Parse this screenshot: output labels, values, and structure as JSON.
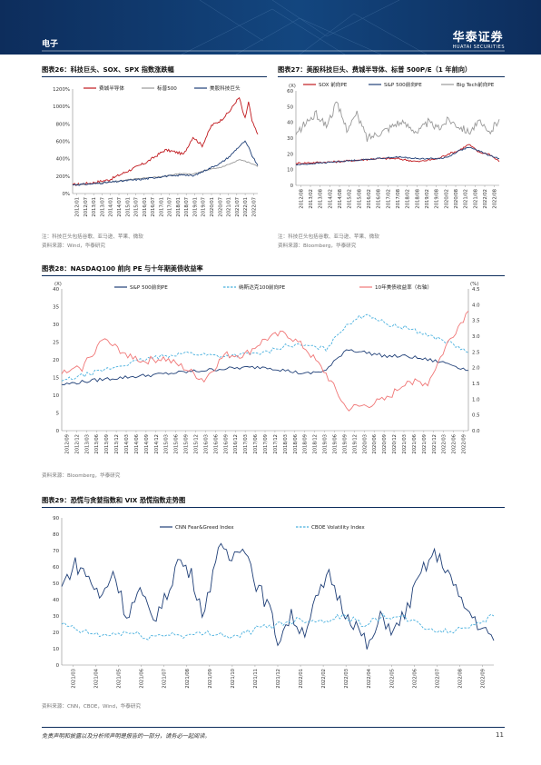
{
  "header": {
    "section": "电子",
    "logo_cn": "华泰证券",
    "logo_en": "HUATAI SECURITIES"
  },
  "colors": {
    "navy": "#0d2d5c",
    "red": "#c0191e",
    "gray": "#9a9a9a",
    "blue_dark": "#1f3f77",
    "cyan": "#49b0de",
    "salmon": "#f07676"
  },
  "footer": {
    "disclaimer": "免责声明和披露以及分析师声明是报告的一部分，请务必一起阅读。",
    "page": "11"
  },
  "charts": [
    {
      "id": "fig26",
      "title": "图表26：科技巨头、SOX、SPX 指数涨跌幅",
      "note": "注：科技巨头包括谷歌、亚马逊、苹果、微软",
      "source": "资料来源：Wind，华泰研究",
      "chart_data": {
        "type": "line",
        "yticks": [
          "1200%",
          "1000%",
          "800%",
          "600%",
          "400%",
          "200%",
          "0%"
        ],
        "ylim": [
          0,
          12
        ],
        "xticks": [
          "2012/01",
          "2012/07",
          "2013/01",
          "2013/07",
          "2014/01",
          "2014/07",
          "2015/01",
          "2015/07",
          "2016/01",
          "2016/07",
          "2017/01",
          "2017/07",
          "2018/01",
          "2018/07",
          "2019/01",
          "2019/07",
          "2020/01",
          "2020/07",
          "2021/01",
          "2021/07",
          "2022/01",
          "2022/07"
        ],
        "legend": [
          "费城半导体",
          "标普500",
          "美股科技巨头"
        ],
        "series": [
          {
            "name": "费城半导体",
            "color": "#c0191e",
            "x": [
              0,
              0.1,
              0.2,
              0.3,
              0.4,
              0.5,
              0.55,
              0.6,
              0.65,
              0.7,
              0.75,
              0.8,
              0.85,
              0.88,
              0.9,
              0.93,
              0.95,
              0.97,
              1.0
            ],
            "y": [
              1,
              1.2,
              1.6,
              2.6,
              3.6,
              5,
              4.8,
              4.5,
              6.5,
              5.5,
              7.8,
              8.4,
              9.5,
              10.5,
              11,
              8.5,
              10.5,
              8.2,
              6.8
            ]
          },
          {
            "name": "标普500",
            "color": "#9a9a9a",
            "x": [
              0,
              0.1,
              0.2,
              0.3,
              0.4,
              0.5,
              0.55,
              0.6,
              0.65,
              0.7,
              0.75,
              0.8,
              0.85,
              0.9,
              0.95,
              1.0
            ],
            "y": [
              1,
              1.1,
              1.3,
              1.6,
              1.8,
              2.0,
              2.2,
              2.3,
              2.2,
              2.6,
              2.8,
              3.0,
              3.4,
              3.9,
              3.6,
              3.1
            ]
          },
          {
            "name": "美股科技巨头",
            "color": "#1f3f77",
            "x": [
              0,
              0.1,
              0.2,
              0.3,
              0.4,
              0.5,
              0.55,
              0.6,
              0.65,
              0.7,
              0.75,
              0.8,
              0.85,
              0.88,
              0.9,
              0.93,
              0.95,
              0.97,
              1.0
            ],
            "y": [
              1,
              1.1,
              1.3,
              1.5,
              1.7,
              2.0,
              2.0,
              2.2,
              2.0,
              2.5,
              3.0,
              3.5,
              4.3,
              5.0,
              5.4,
              6.0,
              5.3,
              4.3,
              3.2
            ]
          }
        ]
      }
    },
    {
      "id": "fig27",
      "title": "图表27：美股科技巨头、费城半导体、标普 500P/E（1 年前向）",
      "note": "注：科技巨头包括谷歌、亚马逊、苹果、微软",
      "source": "资料来源：Bloomberg，华泰研究",
      "chart_data": {
        "type": "line",
        "yunit": "(X)",
        "yticks": [
          "60",
          "50",
          "40",
          "30",
          "20",
          "10",
          "0"
        ],
        "ylim": [
          0,
          60
        ],
        "xticks": [
          "2012/08",
          "2013/02",
          "2013/08",
          "2014/02",
          "2014/08",
          "2015/02",
          "2015/08",
          "2016/02",
          "2016/08",
          "2017/02",
          "2017/08",
          "2018/02",
          "2018/08",
          "2019/02",
          "2019/08",
          "2020/02",
          "2020/08",
          "2021/02",
          "2021/08",
          "2022/02",
          "2022/08"
        ],
        "legend": [
          "SOX 前向PE",
          "S&P 500前向PE",
          "Big Tech前向PE"
        ],
        "series": [
          {
            "name": "SOX 前向PE",
            "color": "#c0191e",
            "x": [
              0,
              0.1,
              0.2,
              0.3,
              0.4,
              0.5,
              0.6,
              0.7,
              0.75,
              0.8,
              0.85,
              0.9,
              0.95,
              1.0
            ],
            "y": [
              14,
              14.5,
              15,
              16,
              17,
              17,
              15,
              17,
              20,
              22,
              26,
              21,
              20,
              15
            ]
          },
          {
            "name": "S&P 500前向PE",
            "color": "#1f3f77",
            "x": [
              0,
              0.1,
              0.2,
              0.3,
              0.4,
              0.5,
              0.6,
              0.7,
              0.75,
              0.8,
              0.85,
              0.9,
              0.95,
              1.0
            ],
            "y": [
              13,
              14,
              15,
              16,
              17,
              18,
              17,
              17,
              18,
              22,
              24,
              22,
              19,
              17
            ]
          },
          {
            "name": "Big Tech前向PE",
            "color": "#9a9a9a",
            "x": [
              0,
              0.05,
              0.1,
              0.15,
              0.2,
              0.25,
              0.3,
              0.35,
              0.4,
              0.45,
              0.5,
              0.55,
              0.6,
              0.65,
              0.7,
              0.75,
              0.8,
              0.85,
              0.9,
              0.95,
              1.0
            ],
            "y": [
              32,
              40,
              45,
              38,
              52,
              36,
              45,
              30,
              33,
              36,
              40,
              38,
              34,
              40,
              36,
              42,
              38,
              34,
              40,
              33,
              42
            ]
          }
        ]
      }
    },
    {
      "id": "fig28",
      "title": "图表28：NASDAQ100 前向 PE 与十年期美债收益率",
      "source": "资料来源：Bloomberg，华泰研究",
      "chart_data": {
        "type": "line",
        "yunit": "(X)",
        "yunit_right": "(%)",
        "yticks": [
          "40",
          "35",
          "30",
          "25",
          "20",
          "15",
          "10",
          "5",
          "0"
        ],
        "ylim": [
          0,
          40
        ],
        "yticks_right": [
          "4.5",
          "4.0",
          "3.5",
          "3.0",
          "2.5",
          "2.0",
          "1.5",
          "1.0",
          "0.5",
          "0.0"
        ],
        "ylim_right": [
          0,
          4.5
        ],
        "xticks": [
          "2012/09",
          "2012/12",
          "2013/03",
          "2013/06",
          "2013/09",
          "2013/12",
          "2014/03",
          "2014/06",
          "2014/09",
          "2014/12",
          "2015/03",
          "2015/06",
          "2015/09",
          "2015/12",
          "2016/03",
          "2016/06",
          "2016/09",
          "2016/12",
          "2017/03",
          "2017/06",
          "2017/09",
          "2017/12",
          "2018/03",
          "2018/06",
          "2018/09",
          "2018/12",
          "2019/03",
          "2019/06",
          "2019/09",
          "2019/12",
          "2020/03",
          "2020/06",
          "2020/09",
          "2020/12",
          "2021/03",
          "2021/06",
          "2021/09",
          "2021/12",
          "2022/03",
          "2022/06",
          "2022/09"
        ],
        "legend": [
          "S&P 500前向PE",
          "纳斯达克100前向PE",
          "10年美债收益率（右轴）"
        ],
        "series": [
          {
            "name": "S&P 500前向PE",
            "color": "#1f3f77",
            "x": [
              0,
              0.1,
              0.2,
              0.3,
              0.4,
              0.5,
              0.55,
              0.6,
              0.65,
              0.7,
              0.75,
              0.8,
              0.85,
              0.9,
              0.95,
              1.0
            ],
            "y": [
              13,
              14.5,
              15.5,
              16.5,
              17.5,
              18,
              17,
              16,
              17,
              23,
              22,
              21,
              21,
              20,
              19,
              17
            ]
          },
          {
            "name": "纳斯达克100前向PE",
            "color": "#49b0de",
            "x": [
              0,
              0.1,
              0.2,
              0.3,
              0.4,
              0.5,
              0.55,
              0.6,
              0.65,
              0.7,
              0.75,
              0.8,
              0.85,
              0.9,
              0.95,
              1.0
            ],
            "y": [
              14,
              17,
              20,
              22,
              21,
              22,
              24,
              24,
              23,
              30,
              33,
              30,
              29,
              27,
              25,
              22
            ]
          },
          {
            "name": "10年美债收益率（右轴）",
            "color": "#f07676",
            "axis": "right",
            "x": [
              0,
              0.05,
              0.1,
              0.15,
              0.2,
              0.25,
              0.3,
              0.35,
              0.4,
              0.45,
              0.5,
              0.55,
              0.6,
              0.65,
              0.7,
              0.75,
              0.8,
              0.85,
              0.9,
              0.95,
              1.0
            ],
            "y": [
              1.8,
              2.0,
              2.9,
              2.5,
              2.2,
              2.3,
              2.0,
              1.6,
              2.4,
              2.4,
              2.9,
              3.1,
              2.6,
              1.8,
              0.7,
              0.8,
              1.0,
              1.6,
              1.5,
              2.8,
              3.8
            ]
          }
        ]
      }
    },
    {
      "id": "fig29",
      "title": "图表29：恐慌与贪婪指数和 VIX 恐慌指数走势图",
      "source": "资料来源：CNN，CBOE，Wind，华泰研究",
      "chart_data": {
        "type": "line",
        "yticks": [
          "90",
          "80",
          "70",
          "60",
          "50",
          "40",
          "30",
          "20",
          "10",
          "0"
        ],
        "ylim": [
          0,
          90
        ],
        "xticks": [
          "2021/03",
          "2021/04",
          "2021/05",
          "2021/06",
          "2021/07",
          "2021/08",
          "2021/09",
          "2021/10",
          "2021/11",
          "2021/12",
          "2022/01",
          "2022/02",
          "2022/03",
          "2022/04",
          "2022/05",
          "2022/06",
          "2022/07",
          "2022/08",
          "2022/09"
        ],
        "legend": [
          "CNN Fear&Greed Index",
          "CBOE Volatility Index"
        ],
        "series": [
          {
            "name": "CNN Fear&Greed Index",
            "color": "#1f3f77",
            "x": [
              0,
              0.03,
              0.06,
              0.09,
              0.12,
              0.15,
              0.18,
              0.21,
              0.24,
              0.27,
              0.3,
              0.33,
              0.36,
              0.39,
              0.42,
              0.45,
              0.48,
              0.5,
              0.53,
              0.56,
              0.59,
              0.62,
              0.65,
              0.68,
              0.71,
              0.74,
              0.77,
              0.8,
              0.83,
              0.86,
              0.89,
              0.92,
              0.95,
              0.98,
              1.0
            ],
            "y": [
              48,
              62,
              55,
              40,
              58,
              30,
              45,
              28,
              40,
              65,
              55,
              30,
              72,
              64,
              76,
              50,
              35,
              15,
              30,
              20,
              40,
              55,
              35,
              25,
              10,
              30,
              20,
              35,
              55,
              68,
              60,
              40,
              30,
              20,
              15
            ]
          },
          {
            "name": "CBOE Volatility Index",
            "color": "#49b0de",
            "x": [
              0,
              0.05,
              0.1,
              0.15,
              0.2,
              0.25,
              0.3,
              0.35,
              0.4,
              0.45,
              0.5,
              0.55,
              0.6,
              0.65,
              0.7,
              0.75,
              0.8,
              0.85,
              0.9,
              0.95,
              1.0
            ],
            "y": [
              25,
              20,
              18,
              20,
              17,
              19,
              18,
              20,
              17,
              22,
              25,
              28,
              27,
              30,
              25,
              30,
              28,
              22,
              20,
              25,
              30
            ]
          }
        ]
      }
    }
  ]
}
